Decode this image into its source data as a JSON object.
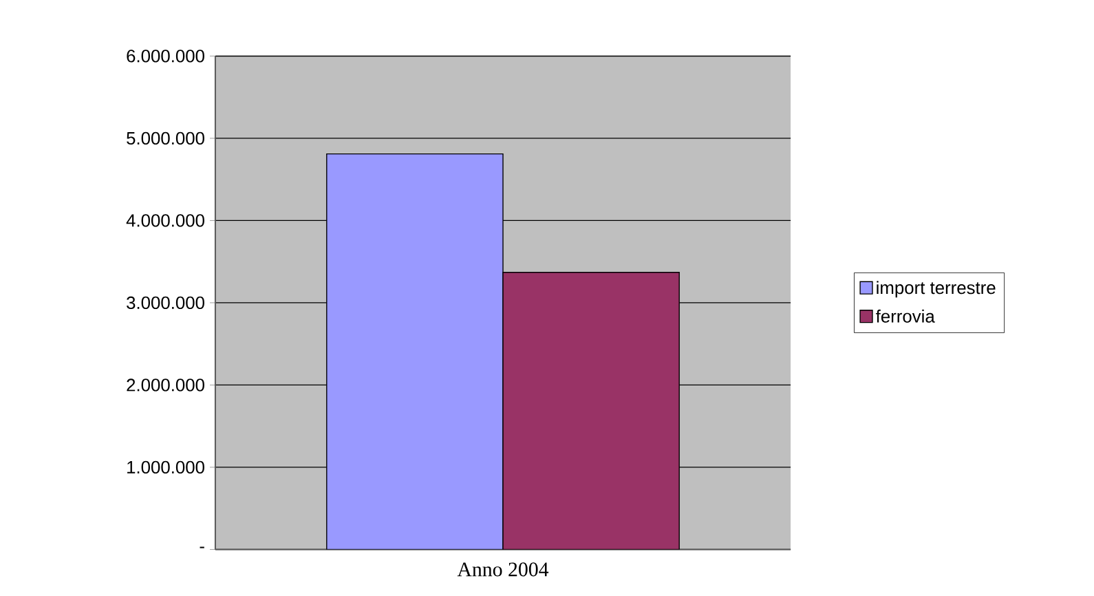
{
  "chart_data": {
    "type": "bar",
    "categories": [
      "Anno 2004"
    ],
    "series": [
      {
        "name": "import terrestre",
        "color": "#9999ff",
        "values": [
          4810000
        ]
      },
      {
        "name": "ferrovia",
        "color": "#993366",
        "values": [
          3370000
        ]
      }
    ],
    "ylim": [
      0,
      6000000
    ],
    "yticks": [
      {
        "value": 0,
        "label": "-"
      },
      {
        "value": 1000000,
        "label": "1.000.000"
      },
      {
        "value": 2000000,
        "label": "2.000.000"
      },
      {
        "value": 3000000,
        "label": "3.000.000"
      },
      {
        "value": 4000000,
        "label": "4.000.000"
      },
      {
        "value": 5000000,
        "label": "5.000.000"
      },
      {
        "value": 6000000,
        "label": "6.000.000"
      }
    ],
    "grid": "y",
    "legend": "right"
  }
}
